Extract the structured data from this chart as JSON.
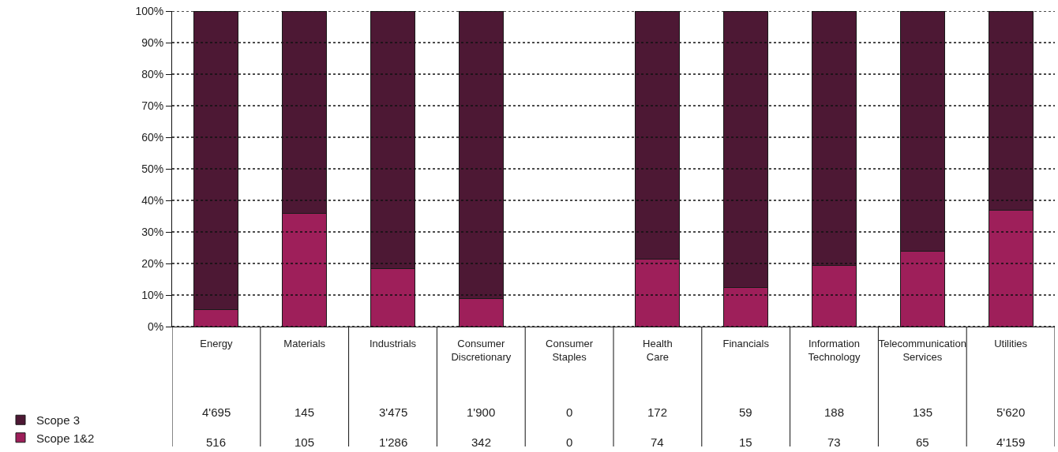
{
  "chart_data": {
    "type": "bar",
    "stacked": true,
    "categories": [
      "Energy",
      "Materials",
      "Industrials",
      "Consumer Discretionary",
      "Consumer Staples",
      "Health Care",
      "Financials",
      "Information Technology",
      "Telecommunication Services",
      "Utilities"
    ],
    "series": [
      {
        "name": "Scope 1&2",
        "color": "#9e1f5a",
        "values": [
          5.4,
          36,
          18.5,
          8.9,
          null,
          21.4,
          12.4,
          19.5,
          23.9,
          37
        ]
      },
      {
        "name": "Scope 3",
        "color": "#4d1834",
        "values": [
          94.6,
          64,
          81.5,
          91.1,
          null,
          78.6,
          87.6,
          80.5,
          76.1,
          63
        ]
      }
    ],
    "annotations": [
      "4'695",
      "145",
      "3'475",
      "1'900",
      "0",
      "172",
      "59",
      "188",
      "135",
      "5'620",
      "516",
      "105",
      "1'286",
      "342",
      "0",
      "74",
      "15",
      "73",
      "65",
      "4'159"
    ],
    "ylim": [
      0,
      100
    ],
    "yticks": [
      {
        "value": 0,
        "label": "0%"
      },
      {
        "value": 10,
        "label": "10%"
      },
      {
        "value": 20,
        "label": "20%"
      },
      {
        "value": 30,
        "label": "30%"
      },
      {
        "value": 40,
        "label": "40%"
      },
      {
        "value": 50,
        "label": "50%"
      },
      {
        "value": 60,
        "label": "60%"
      },
      {
        "value": 70,
        "label": "70%"
      },
      {
        "value": 80,
        "label": "80%"
      },
      {
        "value": 90,
        "label": "90%"
      },
      {
        "value": 100,
        "label": "100%"
      }
    ],
    "grid": "y",
    "legend": "bottom left"
  }
}
